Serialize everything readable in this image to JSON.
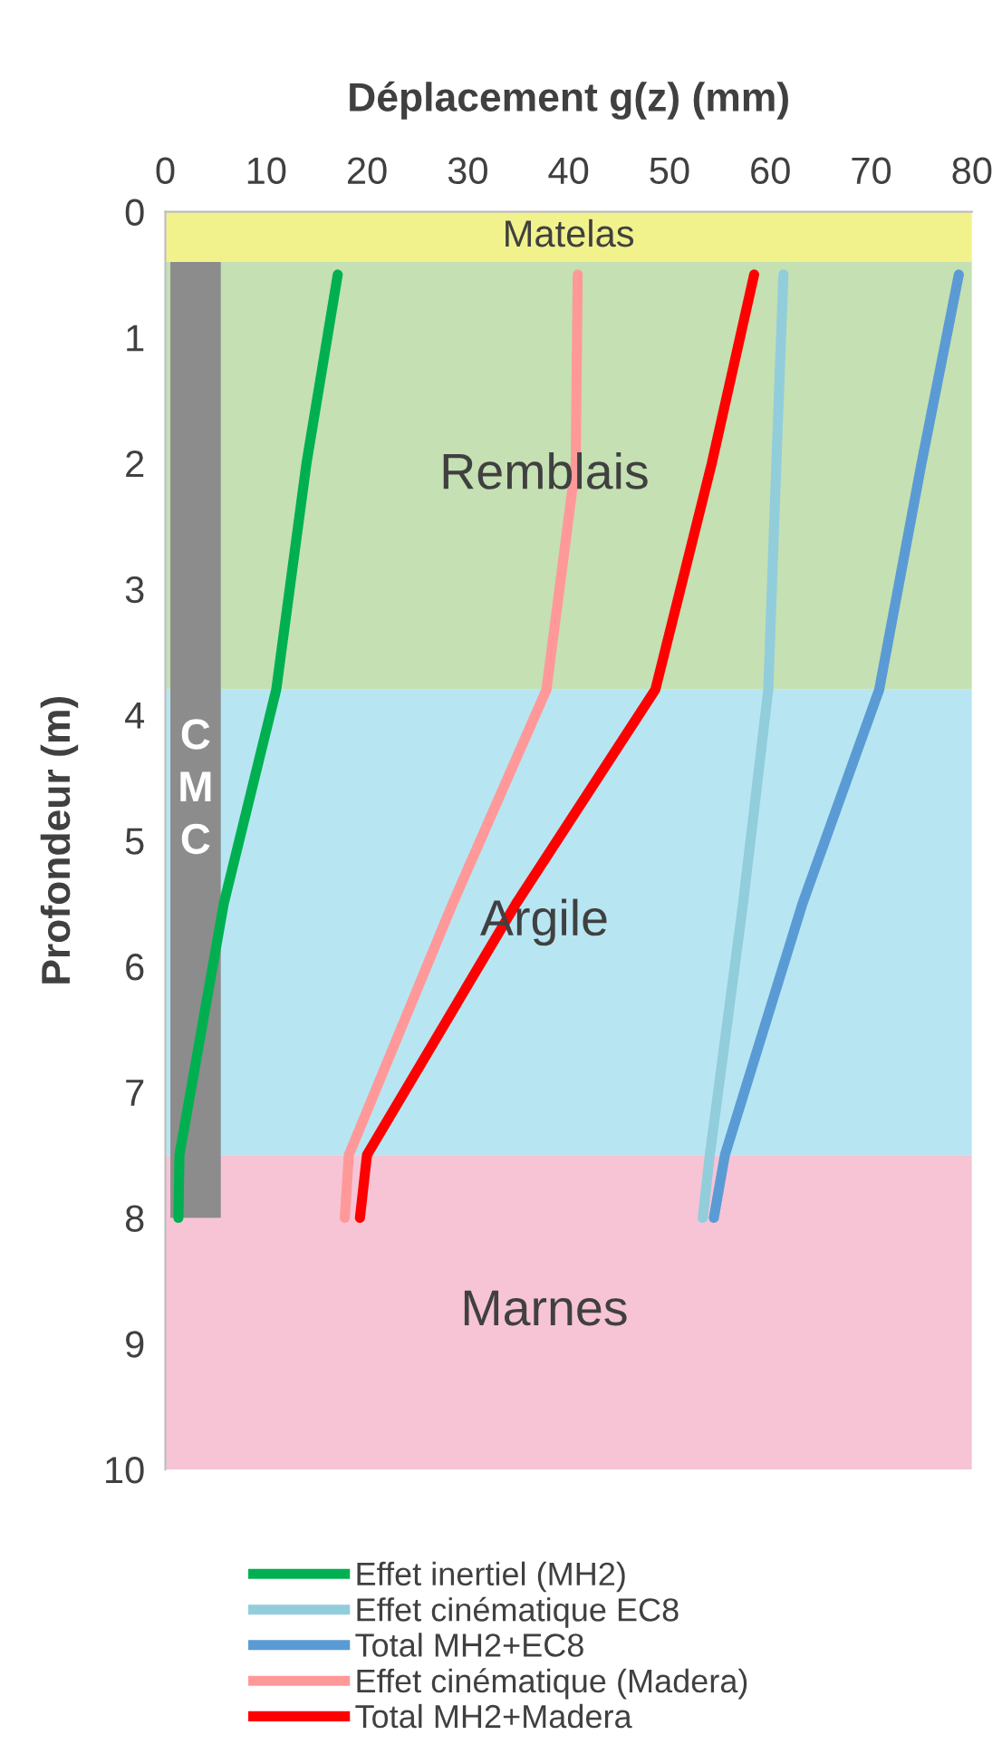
{
  "chart_data": {
    "type": "line",
    "xlabel": "Déplacement g(z) (mm)",
    "ylabel": "Profondeur (m)",
    "xlim": [
      0,
      80
    ],
    "xticks": [
      0,
      10,
      20,
      30,
      40,
      50,
      60,
      70,
      80
    ],
    "ylim": [
      10,
      0
    ],
    "yticks": [
      0,
      1,
      2,
      3,
      4,
      5,
      6,
      7,
      8,
      9,
      10
    ],
    "grid": false,
    "legend": "bottom",
    "marker": "none",
    "line_style": "solid",
    "series": [
      {
        "name": "Effet inertiel (MH2)",
        "color": "#00b050",
        "x": [
          17.1,
          14,
          11,
          5.8,
          1.4,
          1.3
        ],
        "values": [
          0.5,
          2,
          3.8,
          5.5,
          7.5,
          8
        ]
      },
      {
        "name": "Effet cinématique EC8",
        "color": "#92cddc",
        "x": [
          61.3,
          60.6,
          59.8,
          57.3,
          54,
          53.3
        ],
        "values": [
          0.5,
          2,
          3.8,
          5.5,
          7.5,
          8
        ]
      },
      {
        "name": "Total MH2+EC8",
        "color": "#5b9bd5",
        "x": [
          78.7,
          75,
          70.8,
          63.2,
          55.5,
          54.4
        ],
        "values": [
          0.5,
          2,
          3.8,
          5.5,
          7.5,
          8
        ]
      },
      {
        "name": "Effet cinématique (Madera)",
        "color": "#ff9999",
        "x": [
          40.9,
          40.7,
          37.8,
          28.5,
          18.2,
          17.8
        ],
        "values": [
          0.5,
          2,
          3.8,
          5.5,
          7.5,
          8
        ]
      },
      {
        "name": "Total MH2+Madera",
        "color": "#ff0000",
        "x": [
          58.4,
          54.2,
          48.6,
          34.8,
          20,
          19.3
        ],
        "values": [
          0.5,
          2,
          3.8,
          5.5,
          7.5,
          8
        ]
      }
    ],
    "bands": [
      {
        "axis": "y",
        "from": 0,
        "to": 0.4,
        "label": "Matelas",
        "color": "#f2f28c"
      },
      {
        "axis": "y",
        "from": 0.4,
        "to": 3.8,
        "label": "Remblais",
        "color": "#c5e0b3"
      },
      {
        "axis": "y",
        "from": 3.8,
        "to": 7.5,
        "label": "Argile",
        "color": "#b7e6f2"
      },
      {
        "axis": "y",
        "from": 7.5,
        "to": 10,
        "label": "Marnes",
        "color": "#f6c4d5"
      }
    ],
    "annotations": [
      "C\nM\nC"
    ]
  }
}
